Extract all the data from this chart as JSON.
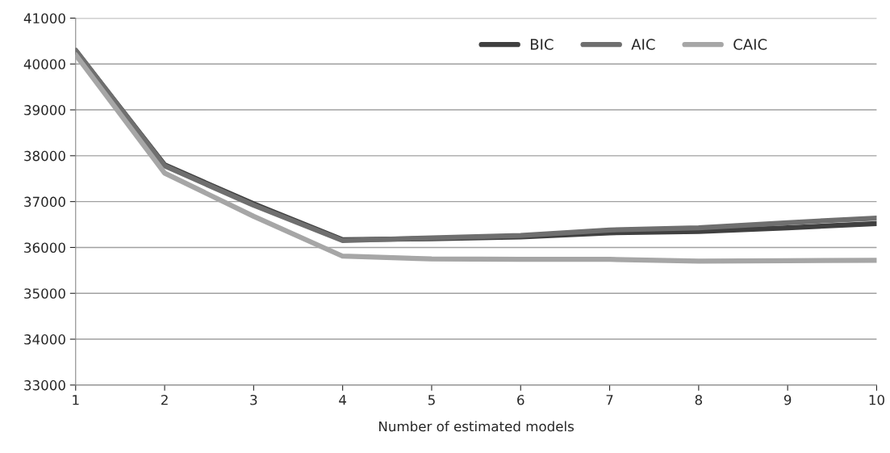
{
  "chart_data": {
    "type": "line",
    "xlabel": "Number of estimated models",
    "x": [
      1,
      2,
      3,
      4,
      5,
      6,
      7,
      8,
      9,
      10
    ],
    "series": [
      {
        "name": "BIC",
        "color": "#404040",
        "values": [
          40290,
          37800,
          36950,
          36170,
          36190,
          36230,
          36320,
          36350,
          36430,
          36520
        ]
      },
      {
        "name": "AIC",
        "color": "#6f6f6f",
        "values": [
          40300,
          37780,
          36920,
          36150,
          36210,
          36260,
          36380,
          36430,
          36540,
          36640
        ]
      },
      {
        "name": "CAIC",
        "color": "#a6a6a6",
        "values": [
          40200,
          37620,
          36680,
          35810,
          35750,
          35740,
          35740,
          35700,
          35710,
          35720
        ]
      }
    ],
    "xlim": [
      1,
      10
    ],
    "xticks": [
      1,
      2,
      3,
      4,
      5,
      6,
      7,
      8,
      9,
      10
    ],
    "ylim": [
      33000,
      41000
    ],
    "yticks": [
      33000,
      34000,
      35000,
      36000,
      37000,
      38000,
      39000,
      40000,
      41000
    ],
    "grid": "y",
    "legend": "top right",
    "marker": "none",
    "line_style": "solid"
  }
}
